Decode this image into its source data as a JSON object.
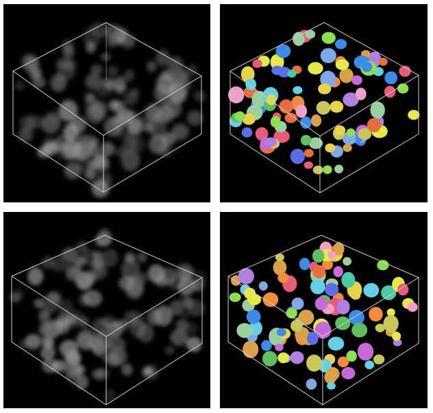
{
  "panels": [
    {
      "id": "top-left",
      "kind": "raw-volume"
    },
    {
      "id": "top-right",
      "kind": "segmented-volume"
    },
    {
      "id": "bottom-left",
      "kind": "raw-volume"
    },
    {
      "id": "bottom-right",
      "kind": "segmented-volume"
    }
  ],
  "colors": {
    "background": "#000000",
    "page": "#ffffff",
    "box_edges": "#cfcfcf",
    "raw_nuclei": "#9a9a9a",
    "segment_palette": [
      "#e6e84a",
      "#5b6ee8",
      "#f28c3c",
      "#63d0e8",
      "#b07fe0",
      "#8be04c",
      "#e85a7a",
      "#49c9a8",
      "#d9a24a",
      "#c76ad8",
      "#7fa8e8",
      "#e8d34a",
      "#5fbf5f",
      "#e86d3c",
      "#9ad0a0",
      "#f0a0c8",
      "#3c8be8",
      "#c8c85a"
    ]
  }
}
